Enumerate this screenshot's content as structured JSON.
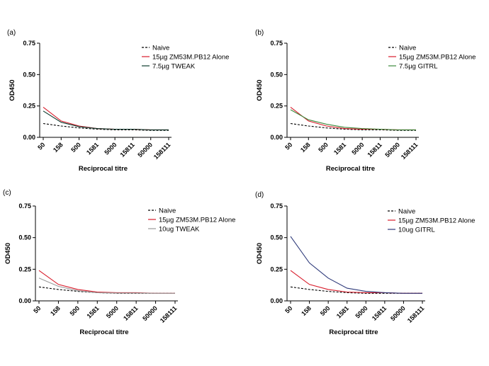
{
  "chart_data": [
    {
      "type": "line",
      "panel": "(a)",
      "xlabel": "Reciprocal titre",
      "ylabel": "OD450",
      "categories": [
        "50",
        "158",
        "500",
        "1581",
        "5000",
        "15811",
        "50000",
        "158111"
      ],
      "yticks": [
        "0.00",
        "0.25",
        "0.50",
        "0.75"
      ],
      "ylim": [
        0,
        0.75
      ],
      "series": [
        {
          "name": "Naive",
          "color": "#000000",
          "dash": true,
          "values": [
            0.11,
            0.09,
            0.075,
            0.065,
            0.06,
            0.06,
            0.055,
            0.055
          ]
        },
        {
          "name": "15µg ZM53M.PB12 Alone",
          "color": "#d81b2a",
          "dash": false,
          "values": [
            0.24,
            0.13,
            0.09,
            0.07,
            0.065,
            0.065,
            0.06,
            0.06
          ]
        },
        {
          "name": "7.5µg TWEAK",
          "color": "#0d3b2e",
          "dash": false,
          "values": [
            0.21,
            0.12,
            0.085,
            0.07,
            0.065,
            0.065,
            0.06,
            0.06
          ]
        }
      ],
      "legend": "top-right"
    },
    {
      "type": "line",
      "panel": "(b)",
      "xlabel": "Reciprocal titre",
      "ylabel": "OD450",
      "categories": [
        "50",
        "158",
        "500",
        "1581",
        "5000",
        "15811",
        "50000",
        "158111"
      ],
      "yticks": [
        "0.00",
        "0.25",
        "0.50",
        "0.75"
      ],
      "ylim": [
        0,
        0.75
      ],
      "series": [
        {
          "name": "Naive",
          "color": "#000000",
          "dash": true,
          "values": [
            0.11,
            0.09,
            0.075,
            0.065,
            0.06,
            0.06,
            0.055,
            0.055
          ]
        },
        {
          "name": "15µg ZM53M.PB12 Alone",
          "color": "#d81b2a",
          "dash": false,
          "values": [
            0.24,
            0.13,
            0.09,
            0.07,
            0.065,
            0.065,
            0.06,
            0.06
          ]
        },
        {
          "name": "7.5µg GITRL",
          "color": "#3c8a3c",
          "dash": false,
          "values": [
            0.22,
            0.14,
            0.105,
            0.08,
            0.07,
            0.065,
            0.06,
            0.06
          ]
        }
      ],
      "legend": "top-right"
    },
    {
      "type": "line",
      "panel": "(c)",
      "xlabel": "Reciprocal titre",
      "ylabel": "OD450",
      "categories": [
        "50",
        "158",
        "500",
        "1581",
        "5000",
        "15811",
        "50000",
        "158111"
      ],
      "yticks": [
        "0.00",
        "0.25",
        "0.50",
        "0.75"
      ],
      "ylim": [
        0,
        0.75
      ],
      "series": [
        {
          "name": "Naive",
          "color": "#000000",
          "dash": true,
          "values": [
            0.11,
            0.09,
            0.075,
            0.065,
            0.06,
            0.06,
            0.06,
            0.06
          ]
        },
        {
          "name": "15µg ZM53M.PB12 Alone",
          "color": "#d81b2a",
          "dash": false,
          "values": [
            0.24,
            0.13,
            0.09,
            0.07,
            0.065,
            0.065,
            0.06,
            0.06
          ]
        },
        {
          "name": "10ug TWEAK",
          "color": "#9a9a9a",
          "dash": false,
          "values": [
            0.18,
            0.115,
            0.08,
            0.065,
            0.062,
            0.062,
            0.06,
            0.06
          ]
        }
      ],
      "legend": "top-right"
    },
    {
      "type": "line",
      "panel": "(d)",
      "xlabel": "Reciprocal titre",
      "ylabel": "OD450",
      "categories": [
        "50",
        "158",
        "500",
        "1581",
        "5000",
        "15811",
        "50000",
        "158111"
      ],
      "yticks": [
        "0.00",
        "0.25",
        "0.50",
        "0.75"
      ],
      "ylim": [
        0,
        0.75
      ],
      "series": [
        {
          "name": "Naive",
          "color": "#000000",
          "dash": true,
          "values": [
            0.11,
            0.09,
            0.075,
            0.065,
            0.06,
            0.06,
            0.06,
            0.06
          ]
        },
        {
          "name": "15µg ZM53M.PB12 Alone",
          "color": "#d81b2a",
          "dash": false,
          "values": [
            0.24,
            0.13,
            0.09,
            0.07,
            0.065,
            0.065,
            0.06,
            0.06
          ]
        },
        {
          "name": "10ug GITRL",
          "color": "#2e3a7a",
          "dash": false,
          "values": [
            0.51,
            0.3,
            0.18,
            0.1,
            0.075,
            0.065,
            0.06,
            0.06
          ]
        }
      ],
      "legend": "top-right"
    }
  ]
}
